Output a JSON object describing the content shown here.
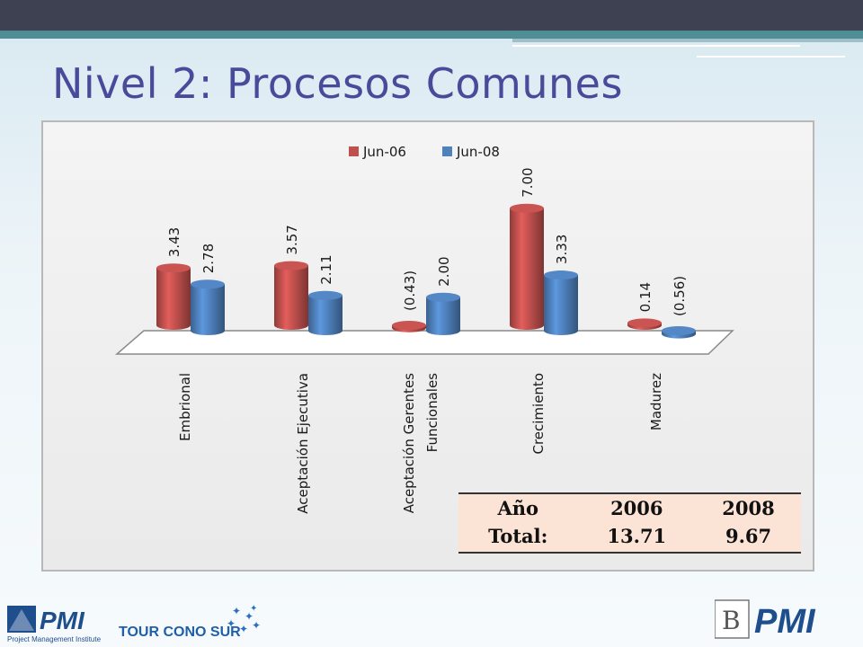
{
  "slide": {
    "title": "Nivel 2: Procesos Comunes"
  },
  "chart_data": {
    "type": "bar",
    "categories": [
      "Embrional",
      "Aceptación Ejecutiva",
      "Aceptación Gerentes Funcionales",
      "Crecimiento",
      "Madurez"
    ],
    "category_lines": [
      [
        "Embrional"
      ],
      [
        "Aceptación Ejecutiva"
      ],
      [
        "Aceptación Gerentes",
        "Funcionales"
      ],
      [
        "Crecimiento"
      ],
      [
        "Madurez"
      ]
    ],
    "series": [
      {
        "name": "Jun-06",
        "color": "#c0504d",
        "values": [
          3.43,
          3.57,
          -0.43,
          7.0,
          0.14
        ],
        "labels": [
          "3.43",
          "3.57",
          "(0.43)",
          "7.00",
          "0.14"
        ]
      },
      {
        "name": "Jun-08",
        "color": "#4f81bd",
        "values": [
          2.78,
          2.11,
          2.0,
          3.33,
          -0.56
        ],
        "labels": [
          "2.78",
          "2.11",
          "2.00",
          "3.33",
          "(0.56)"
        ]
      }
    ],
    "legend_position": "top",
    "three_d": true
  },
  "totals_table": {
    "header": [
      "Año",
      "2006",
      "2008"
    ],
    "row": [
      "Total:",
      "13.71",
      "9.67"
    ],
    "background": "#fbe4d5"
  },
  "footer": {
    "left_logo_text": "PMI",
    "left_caption": "Project Management Institute",
    "tour_text": "TOUR CONO SUR",
    "right_logo_letter": "B",
    "right_logo_text": "PMI"
  }
}
